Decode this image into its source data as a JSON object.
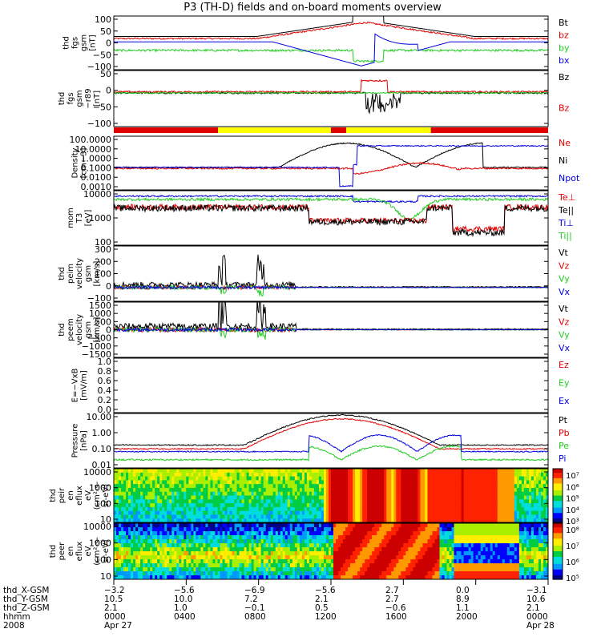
{
  "title": "P3 (TH-D) fields and on-board moments overview",
  "colors": {
    "black": "#000000",
    "red": "#e00000",
    "green": "#22cc22",
    "blue": "#0000dd",
    "yellow": "#ffff00"
  },
  "chart_data": [
    {
      "id": "fgs",
      "type": "line",
      "ylabel": [
        "thd",
        "fgs",
        "gsm",
        "[nT]"
      ],
      "yticks": [
        "100",
        "50",
        "0",
        "−50",
        "−100"
      ],
      "ylim": [
        -100,
        100
      ],
      "legend": [
        {
          "label": "Bt",
          "color": "black"
        },
        {
          "label": "bz",
          "color": "red"
        },
        {
          "label": "by",
          "color": "green"
        },
        {
          "label": "bx",
          "color": "blue"
        }
      ]
    },
    {
      "id": "fgs_r89",
      "type": "line",
      "ylabel": [
        "thd",
        "fgs",
        "gsm",
        "−r89",
        "[nT]"
      ],
      "yticks": [
        "50",
        "0",
        "−50",
        "−100"
      ],
      "ylim": [
        -125,
        75
      ],
      "legend": [
        {
          "label": "Bz",
          "color": "black"
        },
        {
          "label": "Bz",
          "color": "red"
        }
      ]
    },
    {
      "id": "mode_bar",
      "type": "bar",
      "segments": [
        {
          "from": 0,
          "to": 0.24,
          "color": "red"
        },
        {
          "from": 0.24,
          "to": 0.5,
          "color": "yellow"
        },
        {
          "from": 0.5,
          "to": 0.535,
          "color": "red"
        },
        {
          "from": 0.535,
          "to": 0.595,
          "color": "yellow"
        },
        {
          "from": 0.595,
          "to": 0.73,
          "color": "yellow"
        },
        {
          "from": 0.73,
          "to": 1,
          "color": "red"
        }
      ]
    },
    {
      "id": "density",
      "type": "line",
      "scale": "log",
      "ylabel": [
        "Density",
        "[cm−3]"
      ],
      "yticks": [
        "100.0000",
        "10.0000",
        "1.0000",
        "0.1000",
        "0.0100",
        "0.0010"
      ],
      "legend": [
        {
          "label": "Ne",
          "color": "red"
        },
        {
          "label": "Ni",
          "color": "black"
        },
        {
          "label": "Npot",
          "color": "blue"
        }
      ]
    },
    {
      "id": "temp",
      "type": "line",
      "scale": "log",
      "ylabel": [
        "mom",
        "T3",
        "[eV]"
      ],
      "yticks": [
        "10000",
        "1000",
        "100"
      ],
      "legend": [
        {
          "label": "Te⊥",
          "color": "red"
        },
        {
          "label": "Te||",
          "color": "black"
        },
        {
          "label": "Ti⊥",
          "color": "blue"
        },
        {
          "label": "Ti||",
          "color": "green"
        }
      ]
    },
    {
      "id": "peim_v",
      "type": "line",
      "ylabel": [
        "thd",
        "peim",
        "velocity",
        "gsm",
        "[km/s]"
      ],
      "yticks": [
        "300",
        "200",
        "100",
        "0",
        "−100"
      ],
      "ylim": [
        -100,
        300
      ],
      "legend": [
        {
          "label": "Vt",
          "color": "black"
        },
        {
          "label": "Vz",
          "color": "red"
        },
        {
          "label": "Vy",
          "color": "green"
        },
        {
          "label": "Vx",
          "color": "blue"
        }
      ]
    },
    {
      "id": "peem_v",
      "type": "line",
      "ylabel": [
        "thd",
        "peem",
        "velocity",
        "gsm",
        "[km/s]"
      ],
      "yticks": [
        "1500",
        "1000",
        "500",
        "0",
        "−500",
        "−1000",
        "−1500"
      ],
      "ylim": [
        -1500,
        1500
      ],
      "legend": [
        {
          "label": "Vt",
          "color": "black"
        },
        {
          "label": "Vz",
          "color": "red"
        },
        {
          "label": "Vy",
          "color": "green"
        },
        {
          "label": "Vx",
          "color": "blue"
        }
      ]
    },
    {
      "id": "efield",
      "type": "line",
      "ylabel": [
        "E=−VxB",
        "[mV/m]"
      ],
      "yticks": [
        "1.0",
        "0.8",
        "0.6",
        "0.4",
        "0.2",
        "0.0"
      ],
      "ylim": [
        0,
        1
      ],
      "legend": [
        {
          "label": "Ez",
          "color": "red"
        },
        {
          "label": "Ey",
          "color": "green"
        },
        {
          "label": "Ex",
          "color": "blue"
        }
      ]
    },
    {
      "id": "pressure",
      "type": "line",
      "scale": "log",
      "ylabel": [
        "Pressure",
        "[nPa]"
      ],
      "yticks": [
        "10.00",
        "1.00",
        "0.10",
        "0.01"
      ],
      "legend": [
        {
          "label": "Pt",
          "color": "black"
        },
        {
          "label": "Pb",
          "color": "red"
        },
        {
          "label": "Pe",
          "color": "green"
        },
        {
          "label": "Pi",
          "color": "blue"
        }
      ]
    },
    {
      "id": "peir",
      "type": "heatmap",
      "scale": "log",
      "ylabel": [
        "thd",
        "peir",
        "en",
        "eflux",
        "eV",
        "(cm²-s-",
        "sr-eV)"
      ],
      "yticks": [
        "10000",
        "1000",
        "100",
        "10"
      ],
      "colorbar": [
        "10⁷",
        "10⁶",
        "10⁵",
        "10⁴",
        "10³"
      ]
    },
    {
      "id": "peer",
      "type": "heatmap",
      "scale": "log",
      "ylabel": [
        "thd",
        "peer",
        "en",
        "eflux",
        "eV",
        "(cm²-s-",
        "sr-eV)"
      ],
      "yticks": [
        "10000",
        "1000",
        "100",
        "10"
      ],
      "colorbar": [
        "10⁸",
        "10⁷",
        "10⁶",
        "10⁵"
      ]
    }
  ],
  "xaxis": {
    "rows": [
      {
        "label": "thd_X-GSM",
        "values": [
          "−3.2",
          "−5.6",
          "−6.9",
          "−5.6",
          "2.7",
          "0.0",
          "−3.1"
        ]
      },
      {
        "label": "thd_Y-GSM",
        "values": [
          "10.5",
          "10.0",
          "7.2",
          "2.1",
          "2.7",
          "8.9",
          "10.6"
        ]
      },
      {
        "label": "thd_Z-GSM",
        "values": [
          "2.1",
          "1.0",
          "−0.1",
          "0.5",
          "−0.6",
          "1.1",
          "2.1"
        ]
      },
      {
        "label": "hhmm",
        "values": [
          "0000",
          "0400",
          "0800",
          "1200",
          "1600",
          "2000",
          "0000"
        ]
      },
      {
        "label": "2008",
        "values": [
          "Apr 27",
          "",
          "",
          "",
          "",
          "",
          "Apr 28"
        ]
      }
    ]
  }
}
